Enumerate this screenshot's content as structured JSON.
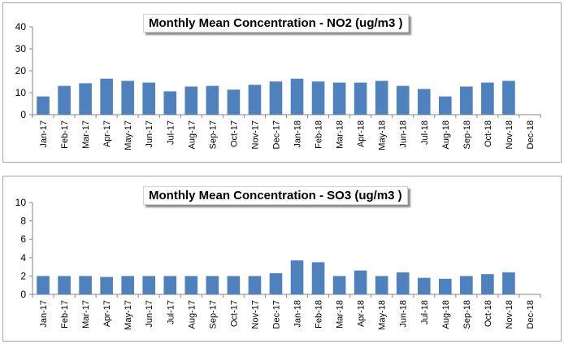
{
  "chart_data": [
    {
      "type": "bar",
      "title": "Monthly Mean Concentration - NO2 (ug/m3 )",
      "xlabel": "",
      "ylabel": "",
      "ylim": [
        0,
        40
      ],
      "yticks": [
        0,
        10,
        20,
        30,
        40
      ],
      "grid": false,
      "bar_color": "#4f81bd",
      "categories": [
        "Jan-17",
        "Feb-17",
        "Mar-17",
        "Apr-17",
        "May-17",
        "Jun-17",
        "Jul-17",
        "Aug-17",
        "Sep-17",
        "Oct-17",
        "Nov-17",
        "Dec-17",
        "Jan-18",
        "Feb-18",
        "Mar-18",
        "Apr-18",
        "May-18",
        "Jun-18",
        "Jul-18",
        "Aug-18",
        "Sep-18",
        "Oct-18",
        "Nov-18",
        "Dec-18"
      ],
      "values": [
        8.3,
        13.1,
        14.3,
        16.4,
        15.4,
        14.6,
        10.6,
        12.8,
        13.1,
        11.4,
        13.6,
        15.1,
        16.4,
        15.1,
        14.6,
        14.6,
        15.4,
        13.1,
        11.7,
        8.3,
        12.8,
        14.6,
        15.4,
        null
      ]
    },
    {
      "type": "bar",
      "title": "Monthly Mean Concentration - SO3 (ug/m3 )",
      "xlabel": "",
      "ylabel": "",
      "ylim": [
        0,
        10
      ],
      "yticks": [
        0,
        2,
        4,
        6,
        8,
        10
      ],
      "grid": false,
      "bar_color": "#4f81bd",
      "categories": [
        "Jan-17",
        "Feb-17",
        "Mar-17",
        "Apr-17",
        "May-17",
        "Jun-17",
        "Jul-17",
        "Aug-17",
        "Sep-17",
        "Oct-17",
        "Nov-17",
        "Dec-17",
        "Jan-18",
        "Feb-18",
        "Mar-18",
        "Apr-18",
        "May-18",
        "Jun-18",
        "Jul-18",
        "Aug-18",
        "Sep-18",
        "Oct-18",
        "Nov-18",
        "Dec-18"
      ],
      "values": [
        2.0,
        2.0,
        2.0,
        1.9,
        2.0,
        2.0,
        2.0,
        2.0,
        2.0,
        2.0,
        2.0,
        2.3,
        3.7,
        3.5,
        2.0,
        2.6,
        2.0,
        2.4,
        1.8,
        1.7,
        2.0,
        2.2,
        2.4,
        null
      ]
    }
  ]
}
